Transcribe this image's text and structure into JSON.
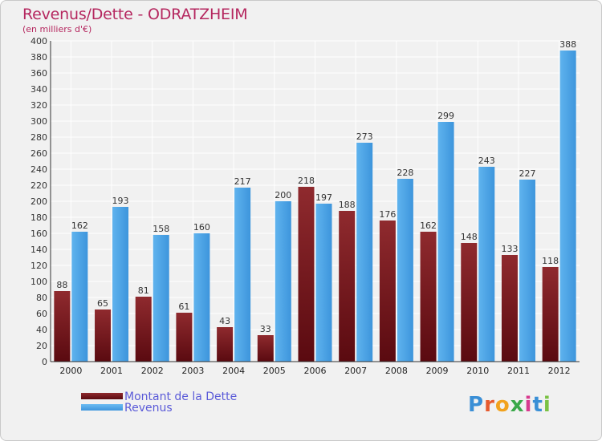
{
  "title": "Revenus/Dette - ODRATZHEIM",
  "subtitle": "(en milliers d'€)",
  "logo": {
    "text": "Proxiti"
  },
  "colors": {
    "title": "#b5275f",
    "dette": "#7a1a20",
    "revenus": "#4aa3e6",
    "legend_text": "#5a5ad8"
  },
  "legend": [
    {
      "label": "Montant de la Dette",
      "color": "#7a1a20"
    },
    {
      "label": "Revenus",
      "color": "#4aa3e6"
    }
  ],
  "chart_data": {
    "type": "bar",
    "title": "Revenus/Dette - ODRATZHEIM",
    "subtitle": "(en milliers d'€)",
    "xlabel": "",
    "ylabel": "",
    "ylim": [
      0,
      400
    ],
    "yticks": [
      0,
      20,
      40,
      60,
      80,
      100,
      120,
      140,
      160,
      180,
      200,
      220,
      240,
      260,
      280,
      300,
      320,
      340,
      360,
      380,
      400
    ],
    "grid": true,
    "legend_position": "bottom-left",
    "categories": [
      "2000",
      "2001",
      "2002",
      "2003",
      "2004",
      "2005",
      "2006",
      "2007",
      "2008",
      "2009",
      "2010",
      "2011",
      "2012"
    ],
    "series": [
      {
        "name": "Montant de la Dette",
        "values": [
          88,
          65,
          81,
          61,
          43,
          33,
          218,
          188,
          176,
          162,
          148,
          133,
          118
        ]
      },
      {
        "name": "Revenus",
        "values": [
          162,
          193,
          158,
          160,
          217,
          200,
          197,
          273,
          228,
          299,
          243,
          227,
          388
        ]
      }
    ]
  }
}
